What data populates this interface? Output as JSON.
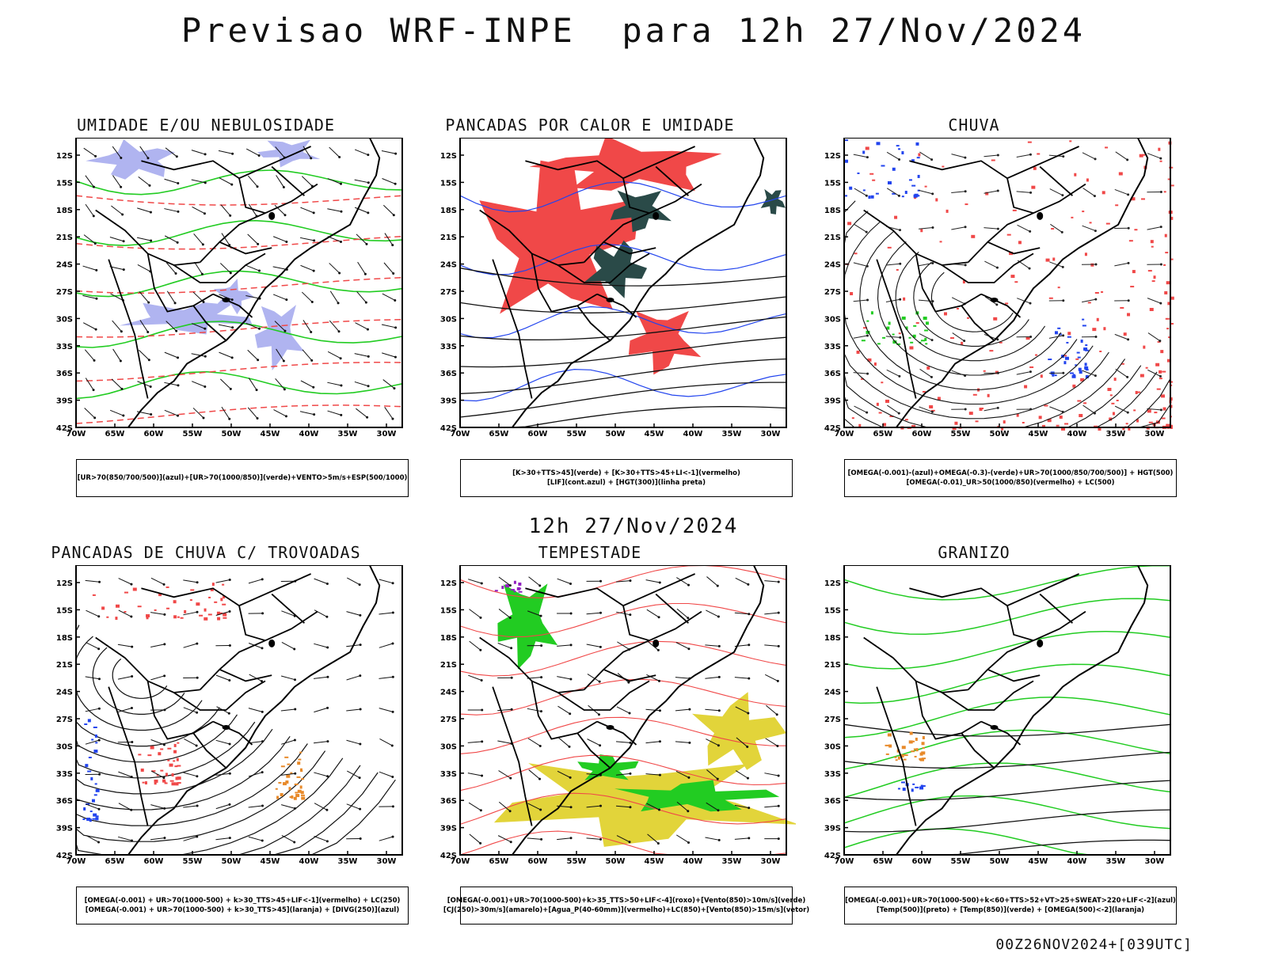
{
  "title": "Previsao WRF-INPE  para 12h 27/Nov/2024",
  "mid_date": "12h 27/Nov/2024",
  "run_info": "00Z26NOV2024+[039UTC]",
  "axes": {
    "lat_labels": [
      "12S",
      "15S",
      "18S",
      "21S",
      "24S",
      "27S",
      "30S",
      "33S",
      "36S",
      "39S",
      "42S"
    ],
    "lon_labels": [
      "70W",
      "65W",
      "60W",
      "55W",
      "50W",
      "45W",
      "40W",
      "35W",
      "30W"
    ]
  },
  "colors": {
    "blue_fill": "#b0b4f0",
    "green": "#22cc22",
    "red": "#f04848",
    "dark_teal": "#2a4a48",
    "yellow": "#e2d43a",
    "blue": "#2244ee",
    "orange": "#e88a2a",
    "purple": "#9020c0"
  },
  "panels": [
    {
      "id": "umidade",
      "title": "UMIDADE E/OU NEBULOSIDADE",
      "legend": [
        "[UR>70(850/700/500)](azul)+[UR>70(1000/850)](verde)+VENTO>5m/s+ESP(500/1000)"
      ]
    },
    {
      "id": "pancadas-calor",
      "title": "PANCADAS POR CALOR E UMIDADE",
      "legend": [
        "[K>30+TTS>45](verde) + [K>30+TTS>45+LI<-1](vermelho)",
        "[LIF](cont.azul) + [HGT(300)](linha preta)"
      ]
    },
    {
      "id": "chuva",
      "title": "CHUVA",
      "legend": [
        "[OMEGA(-0.001)-(azul)+OMEGA(-0.3)-(verde)+UR>70(1000/850/700/500)] + HGT(500)",
        "[OMEGA(-0.01)_UR>50(1000/850)(vermelho) + LC(500)"
      ]
    },
    {
      "id": "pancadas-trovoadas",
      "title": "PANCADAS DE CHUVA C/ TROVOADAS",
      "legend": [
        "[OMEGA(-0.001) + UR>70(1000-500) + k>30_TTS>45+LIF<-1](vermelho) + LC(250)",
        "[OMEGA(-0.001) + UR>70(1000-500) + k>30_TTS>45](laranja) + [DIVG(250)](azul)"
      ]
    },
    {
      "id": "tempestade",
      "title": "TEMPESTADE",
      "legend": [
        "[OMEGA(-0.001)+UR>70(1000-500)+k>35_TTS>50+LIF<-4](roxo)+[Vento(850)>10m/s](verde)",
        "[CJ(250)>30m/s](amarelo)+[Agua_P(40-60mm)](vermelho)+LC(850)+[Vento(850)>15m/s](vetor)"
      ]
    },
    {
      "id": "granizo",
      "title": "GRANIZO",
      "legend": [
        "[OMEGA(-0.001)+UR>70(1000-500)+k<60+TTS>52+VT>25+SWEAT>220+LIF<-2](azul)",
        "[Temp(500)](preto) + [Temp(850)](verde) + [OMEGA(500)<-2](laranja)"
      ]
    }
  ]
}
